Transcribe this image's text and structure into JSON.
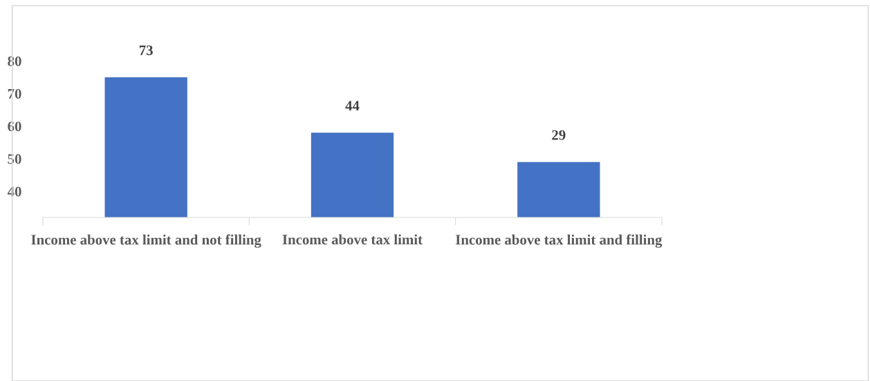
{
  "chart_data": {
    "type": "bar",
    "categories": [
      "Income above tax limit and not filling",
      "Income above tax limit",
      "Income above tax limit and filling"
    ],
    "values": [
      75,
      58,
      49
    ],
    "annotations": [
      {
        "text": "73",
        "x": "Income above tax limit and not filling",
        "y": 75
      },
      {
        "text": "44",
        "x": "Income above tax limit",
        "y": 58
      },
      {
        "text": "29",
        "x": "Income above tax limit and filling",
        "y": 49
      }
    ],
    "color": "#4472c4",
    "ylim": [
      32,
      97
    ],
    "yticks": [
      40,
      50,
      60,
      70,
      80
    ],
    "grid": false,
    "legend": false
  }
}
